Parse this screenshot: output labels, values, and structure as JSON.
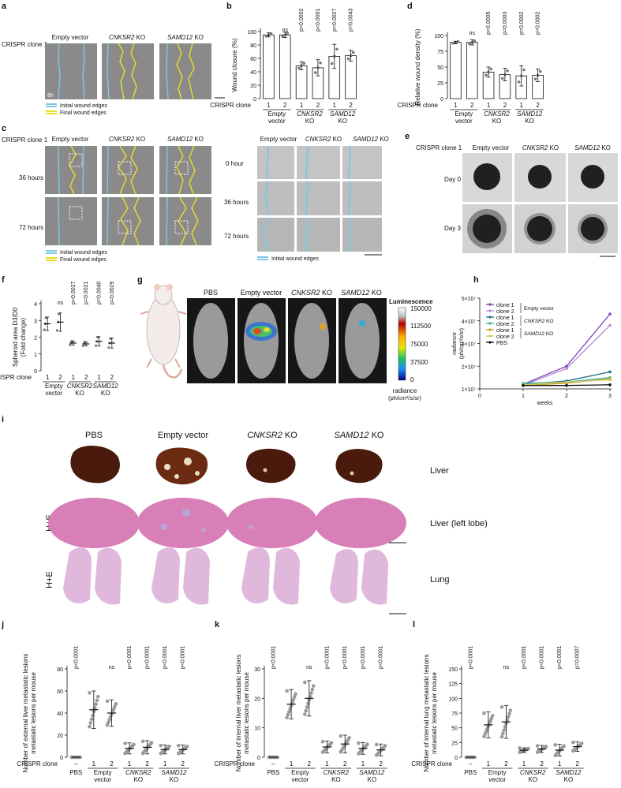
{
  "panel_letters": [
    "a",
    "b",
    "c",
    "d",
    "e",
    "f",
    "g",
    "h",
    "i",
    "j",
    "k",
    "l"
  ],
  "crispr_clone1_label": "CRISPR clone 1",
  "crispr_clone_label": "CRISPR clone",
  "groups": {
    "ev": "Empty vector",
    "cnksr2": "CNKSR2",
    "samd12": "SAMD12",
    "ko": "KO",
    "pbs": "PBS",
    "empty": "Empty",
    "vector": "vector",
    "dash": "–"
  },
  "panel_a": {
    "time_label": "8h",
    "legend": [
      "Initial wound edges",
      "Final wound edges"
    ]
  },
  "panel_c": {
    "rows": [
      "36 hours",
      "72 hours"
    ],
    "legend": [
      "Initial wound edges",
      "Final wound edges"
    ],
    "zoom_rows": [
      "0 hour",
      "36 hours",
      "72 hours"
    ],
    "zoom_legend": "Initial wound edges"
  },
  "panel_e": {
    "rows": [
      "Day 0",
      "Day 3"
    ]
  },
  "panel_g": {
    "cbar_title": "Luminescence",
    "cbar_ticks": [
      "150000",
      "112500",
      "75000",
      "37500",
      "0"
    ],
    "cbar_units": "radiance",
    "cbar_units2": "(ph/cm²/s/sr)"
  },
  "panel_i": {
    "row_labels": [
      "Liver",
      "Liver (left lobe)",
      "Lung"
    ],
    "stain": "H+E"
  },
  "colors": {
    "initial_edge": "#7ec8e3",
    "final_edge": "#e8df2a",
    "clone1_purple": "#7b3fb5",
    "clone2_purple": "#b58ad6",
    "clone1_teal": "#1f6f8b",
    "clone2_teal": "#3fb6a8",
    "clone1_olive": "#c8a020",
    "clone2_olive": "#d8c860",
    "pbs": "#111111"
  },
  "chart_data": [
    {
      "id": "b",
      "type": "bar",
      "ylabel": "Wound closure (%)",
      "ylim": [
        0,
        100
      ],
      "yticks": [
        0,
        20,
        40,
        60,
        80,
        100
      ],
      "categories": [
        "1",
        "2",
        "1",
        "2",
        "1",
        "2"
      ],
      "group_labels": [
        [
          "Empty",
          "vector"
        ],
        [
          "CNKSR2",
          "KO"
        ],
        [
          "SAMD12",
          "KO"
        ]
      ],
      "values": [
        95,
        95,
        49,
        46,
        63,
        64
      ],
      "errors": [
        3,
        4,
        6,
        12,
        18,
        8
      ],
      "annotations": [
        "",
        "ns",
        "p=0.0002",
        "p<0.0001",
        "p=0.0027",
        "p=0.0043"
      ]
    },
    {
      "id": "d",
      "type": "bar",
      "ylabel": "Relative wound density (%)",
      "ylim": [
        0,
        100
      ],
      "yticks": [
        0,
        25,
        50,
        75,
        100
      ],
      "categories": [
        "1",
        "2",
        "1",
        "2",
        "1",
        "2"
      ],
      "group_labels": [
        [
          "Empty",
          "vector"
        ],
        [
          "CNKSR2",
          "KO"
        ],
        [
          "SAMD12",
          "KO"
        ]
      ],
      "values": [
        89,
        89,
        42,
        38,
        36,
        37
      ],
      "errors": [
        2,
        4,
        8,
        10,
        16,
        10
      ],
      "annotations": [
        "",
        "ns",
        "p=0.0005",
        "p=0.0003",
        "p=0.0002",
        "p=0.0002"
      ]
    },
    {
      "id": "f",
      "type": "scatter",
      "ylabel": "Spheroid area D3/D0 (Fold change)",
      "ylim": [
        0,
        4
      ],
      "yticks": [
        0,
        1,
        2,
        3,
        4
      ],
      "categories": [
        "1",
        "2",
        "1",
        "2",
        "1",
        "2"
      ],
      "group_labels": [
        [
          "Empty",
          "vector"
        ],
        [
          "CNKSR2",
          "KO"
        ],
        [
          "SAMD12",
          "KO"
        ]
      ],
      "means": [
        2.8,
        2.9,
        1.65,
        1.6,
        1.75,
        1.65
      ],
      "errors": [
        0.4,
        0.55,
        0.12,
        0.12,
        0.28,
        0.3
      ],
      "annotations": [
        "",
        "ns",
        "p=0.0027",
        "p=0.0021",
        "p=0.0040",
        "p=0.0029"
      ]
    },
    {
      "id": "h",
      "type": "line",
      "xlabel": "weeks",
      "ylabel": "radiance (ph/cm²/s/sr)",
      "xlim": [
        0,
        3
      ],
      "ylim": [
        10000000,
        50000000
      ],
      "xticks": [
        "0",
        "1",
        "2",
        "3"
      ],
      "yticks": [
        "1×10⁷",
        "2×10⁷",
        "3×10⁷",
        "4×10⁷",
        "5×10⁷"
      ],
      "x": [
        1,
        2,
        3
      ],
      "series": [
        {
          "name": "clone 1",
          "group": "Empty vector",
          "values": [
            12000000,
            20000000,
            43000000
          ]
        },
        {
          "name": "clone 2",
          "group": "Empty vector",
          "values": [
            11500000,
            19000000,
            38000000
          ]
        },
        {
          "name": "clone 1",
          "group": "CNKSR2 KO",
          "values": [
            12000000,
            13500000,
            17500000
          ]
        },
        {
          "name": "clone 2",
          "group": "CNKSR2 KO",
          "values": [
            12500000,
            13000000,
            15000000
          ]
        },
        {
          "name": "clone 1",
          "group": "SAMD12 KO",
          "values": [
            11500000,
            12500000,
            14500000
          ]
        },
        {
          "name": "clone 2",
          "group": "SAMD12 KO",
          "values": [
            11800000,
            13000000,
            14000000
          ]
        },
        {
          "name": "PBS",
          "group": "",
          "values": [
            11500000,
            11500000,
            11800000
          ]
        }
      ]
    },
    {
      "id": "j",
      "type": "scatter",
      "ylabel": "Number of external liver metastatic lesions per mouse",
      "ylim": [
        0,
        80
      ],
      "yticks": [
        0,
        20,
        40,
        60,
        80
      ],
      "categories": [
        "–",
        "1",
        "2",
        "1",
        "2",
        "1",
        "2"
      ],
      "group_labels": [
        [
          "PBS"
        ],
        [
          "Empty",
          "vector"
        ],
        [
          "CNKSR2",
          "KO"
        ],
        [
          "SAMD12",
          "KO"
        ]
      ],
      "means": [
        0,
        43,
        40,
        8,
        9,
        7,
        7
      ],
      "errors": [
        0,
        17,
        12,
        5,
        6,
        4,
        4
      ],
      "annotations": [
        "p<0.0001",
        "",
        "ns",
        "p<0.0001",
        "p<0.0001",
        "p<0.0001",
        "p<0.0001"
      ]
    },
    {
      "id": "k",
      "type": "scatter",
      "ylabel": "Number of internal liver metastatic lesions per mouse",
      "ylim": [
        0,
        30
      ],
      "yticks": [
        0,
        10,
        20,
        30
      ],
      "categories": [
        "–",
        "1",
        "2",
        "1",
        "2",
        "1",
        "2"
      ],
      "group_labels": [
        [
          "PBS"
        ],
        [
          "Empty",
          "vector"
        ],
        [
          "CNKSR2",
          "KO"
        ],
        [
          "SAMD12",
          "KO"
        ]
      ],
      "means": [
        0,
        18,
        20,
        3.5,
        4.5,
        3,
        2.5
      ],
      "errors": [
        0,
        5,
        6,
        2,
        3,
        2,
        2
      ],
      "annotations": [
        "p<0.0001",
        "",
        "ns",
        "p<0.0001",
        "p<0.0001",
        "p<0.0001",
        "p<0.0001"
      ]
    },
    {
      "id": "l",
      "type": "scatter",
      "ylabel": "Number of internal lung metastatic lesions per mouse",
      "ylim": [
        0,
        150
      ],
      "yticks": [
        0,
        25,
        50,
        75,
        100,
        125,
        150
      ],
      "categories": [
        "–",
        "1",
        "2",
        "1",
        "2",
        "1",
        "2"
      ],
      "group_labels": [
        [
          "PBS"
        ],
        [
          "Empty",
          "vector"
        ],
        [
          "CNKSR2",
          "KO"
        ],
        [
          "SAMD12",
          "KO"
        ]
      ],
      "means": [
        0,
        55,
        60,
        12,
        14,
        12,
        18
      ],
      "errors": [
        0,
        22,
        28,
        4,
        6,
        10,
        8
      ],
      "annotations": [
        "p<0.0001",
        "",
        "ns",
        "p<0.0001",
        "p<0.0001",
        "p<0.0001",
        "p=0.0007"
      ]
    }
  ]
}
